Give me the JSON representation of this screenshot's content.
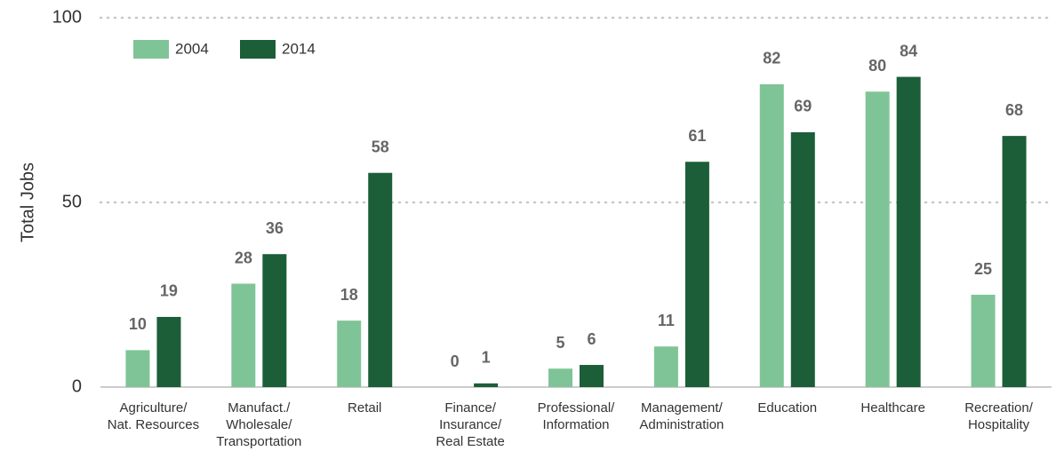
{
  "chart_data": {
    "type": "bar",
    "y_label": "Total Jobs",
    "categories": [
      [
        "Agriculture/",
        "Nat. Resources"
      ],
      [
        "Manufact./",
        "Wholesale/",
        "Transportation"
      ],
      [
        "Retail"
      ],
      [
        "Finance/",
        "Insurance/",
        "Real Estate"
      ],
      [
        "Professional/",
        "Information"
      ],
      [
        "Management/",
        "Administration"
      ],
      [
        "Education"
      ],
      [
        "Healthcare"
      ],
      [
        "Recreation/",
        "Hospitality"
      ]
    ],
    "series": [
      {
        "name": "2004",
        "color": "#7fc497",
        "values": [
          10,
          28,
          18,
          0,
          5,
          11,
          82,
          80,
          25
        ]
      },
      {
        "name": "2014",
        "color": "#1b5e38",
        "values": [
          19,
          36,
          58,
          1,
          6,
          61,
          69,
          84,
          68
        ]
      }
    ],
    "ylim": [
      0,
      100
    ],
    "yticks": [
      0,
      50,
      100
    ],
    "grid": true,
    "legend": "top-left"
  }
}
